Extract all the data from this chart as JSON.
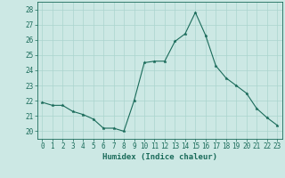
{
  "x": [
    0,
    1,
    2,
    3,
    4,
    5,
    6,
    7,
    8,
    9,
    10,
    11,
    12,
    13,
    14,
    15,
    16,
    17,
    18,
    19,
    20,
    21,
    22,
    23
  ],
  "y": [
    21.9,
    21.7,
    21.7,
    21.3,
    21.1,
    20.8,
    20.2,
    20.2,
    20.0,
    22.0,
    24.5,
    24.6,
    24.6,
    25.9,
    26.4,
    27.8,
    26.3,
    24.3,
    23.5,
    23.0,
    22.5,
    21.5,
    20.9,
    20.4
  ],
  "line_color": "#1a6b5a",
  "marker": "*",
  "marker_size": 2.5,
  "bg_color": "#cce8e4",
  "grid_color": "#aad4ce",
  "xlabel": "Humidex (Indice chaleur)",
  "ylabel": "",
  "title": "",
  "ylim": [
    19.5,
    28.5
  ],
  "xlim": [
    -0.5,
    23.5
  ],
  "yticks": [
    20,
    21,
    22,
    23,
    24,
    25,
    26,
    27,
    28
  ],
  "xticks": [
    0,
    1,
    2,
    3,
    4,
    5,
    6,
    7,
    8,
    9,
    10,
    11,
    12,
    13,
    14,
    15,
    16,
    17,
    18,
    19,
    20,
    21,
    22,
    23
  ],
  "tick_color": "#1a6b5a",
  "label_color": "#1a6b5a",
  "xlabel_fontsize": 6.5,
  "tick_fontsize": 5.5,
  "linewidth": 0.8
}
